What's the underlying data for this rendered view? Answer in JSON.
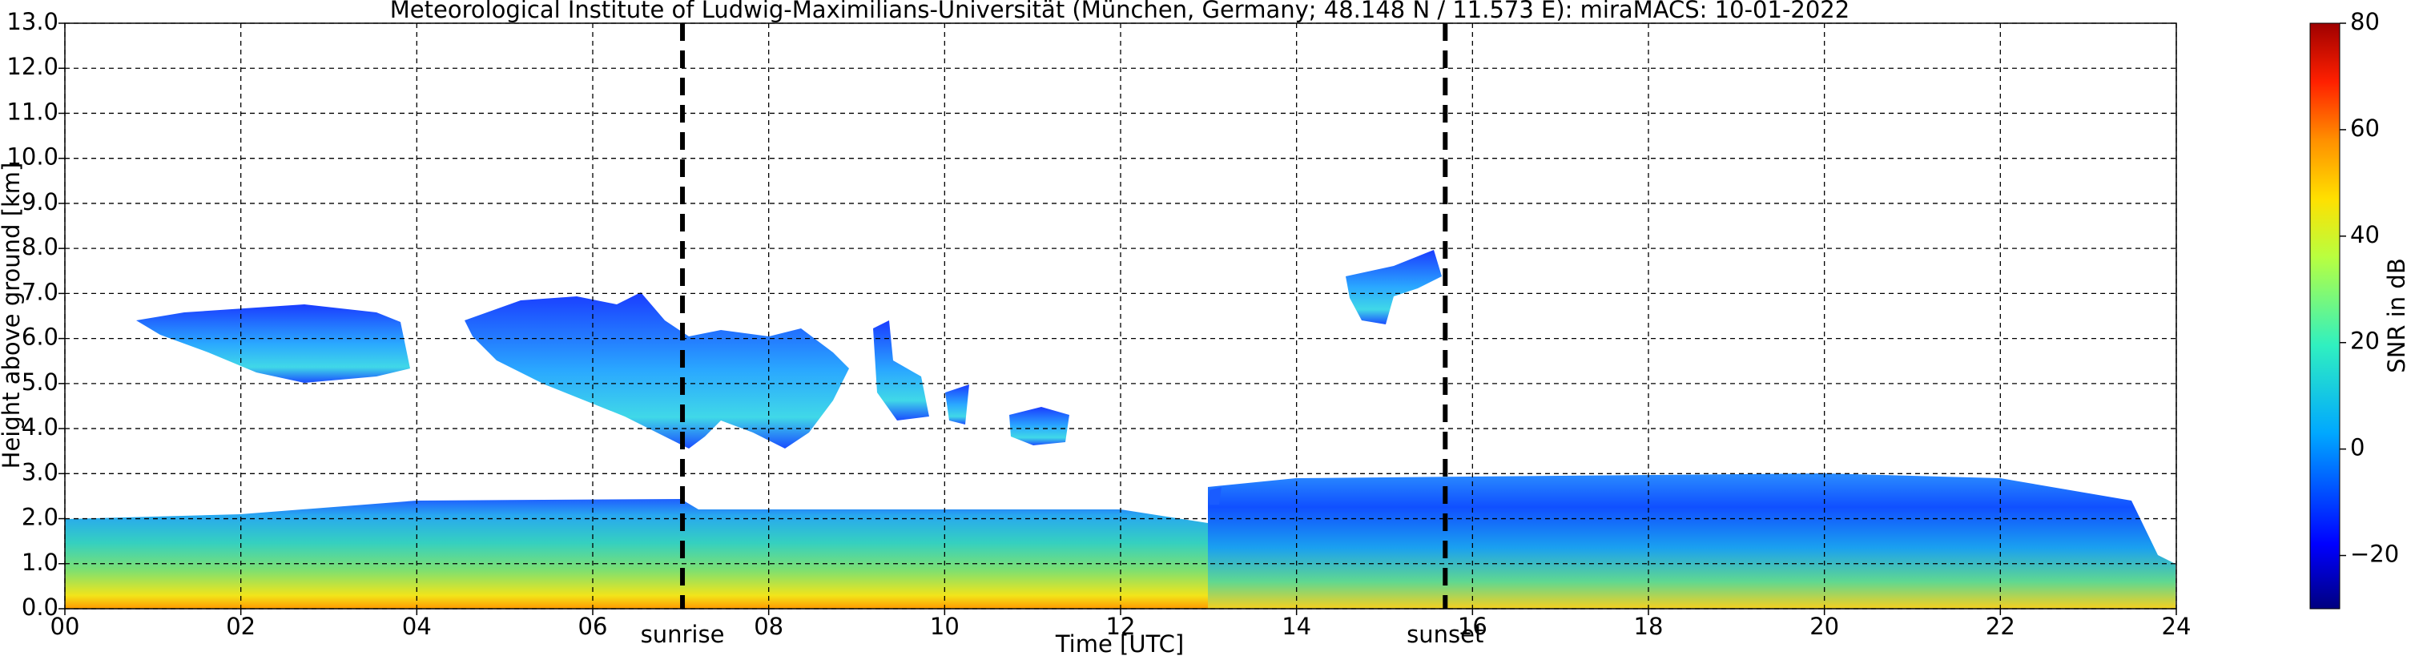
{
  "chart_data": {
    "type": "heatmap",
    "title": "Meteorological Institute of Ludwig-Maximilians-Universität (München, Germany; 48.148 N / 11.573 E):    miraMACS: 10-01-2022",
    "xlabel": "Time [UTC]",
    "ylabel": "Height above ground [km]",
    "xlim": [
      0,
      24
    ],
    "ylim": [
      0,
      13
    ],
    "xticks": [
      {
        "value": 0,
        "label": "00"
      },
      {
        "value": 2,
        "label": "02"
      },
      {
        "value": 4,
        "label": "04"
      },
      {
        "value": 6,
        "label": "06"
      },
      {
        "value": 8,
        "label": "08"
      },
      {
        "value": 10,
        "label": "10"
      },
      {
        "value": 12,
        "label": "12"
      },
      {
        "value": 14,
        "label": "14"
      },
      {
        "value": 16,
        "label": "16"
      },
      {
        "value": 18,
        "label": "18"
      },
      {
        "value": 20,
        "label": "20"
      },
      {
        "value": 22,
        "label": "22"
      },
      {
        "value": 24,
        "label": "24"
      }
    ],
    "yticks": [
      {
        "value": 0,
        "label": "0.0"
      },
      {
        "value": 1,
        "label": "1.0"
      },
      {
        "value": 2,
        "label": "2.0"
      },
      {
        "value": 3,
        "label": "3.0"
      },
      {
        "value": 4,
        "label": "4.0"
      },
      {
        "value": 5,
        "label": "5.0"
      },
      {
        "value": 6,
        "label": "6.0"
      },
      {
        "value": 7,
        "label": "7.0"
      },
      {
        "value": 8,
        "label": "8.0"
      },
      {
        "value": 9,
        "label": "9.0"
      },
      {
        "value": 10,
        "label": "10.0"
      },
      {
        "value": 11,
        "label": "11.0"
      },
      {
        "value": 12,
        "label": "12.0"
      },
      {
        "value": 13,
        "label": "13.0"
      }
    ],
    "grid": true,
    "colorbar": {
      "label": "SNR in dB",
      "lim": [
        -30,
        80
      ],
      "ticks": [
        {
          "value": -20,
          "label": "−20"
        },
        0,
        20,
        40,
        60,
        80
      ]
    },
    "annotations": [
      {
        "text": "sunrise",
        "x": 7.02
      },
      {
        "text": "sunset",
        "x": 15.69
      }
    ]
  }
}
